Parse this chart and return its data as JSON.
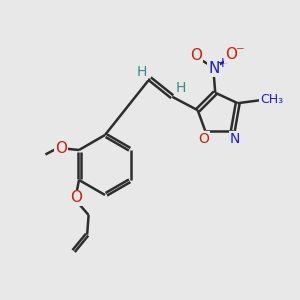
{
  "bg_color": "#e8e8e8",
  "bond_color": "#2d2d2d",
  "bond_lw": 1.8,
  "O_color": "#cc2200",
  "N_color": "#1a1aee",
  "H_color": "#3a8a8a",
  "figsize": [
    3.0,
    3.0
  ],
  "dpi": 100,
  "xlim": [
    0,
    10
  ],
  "ylim": [
    0,
    10
  ],
  "font_size": 10
}
